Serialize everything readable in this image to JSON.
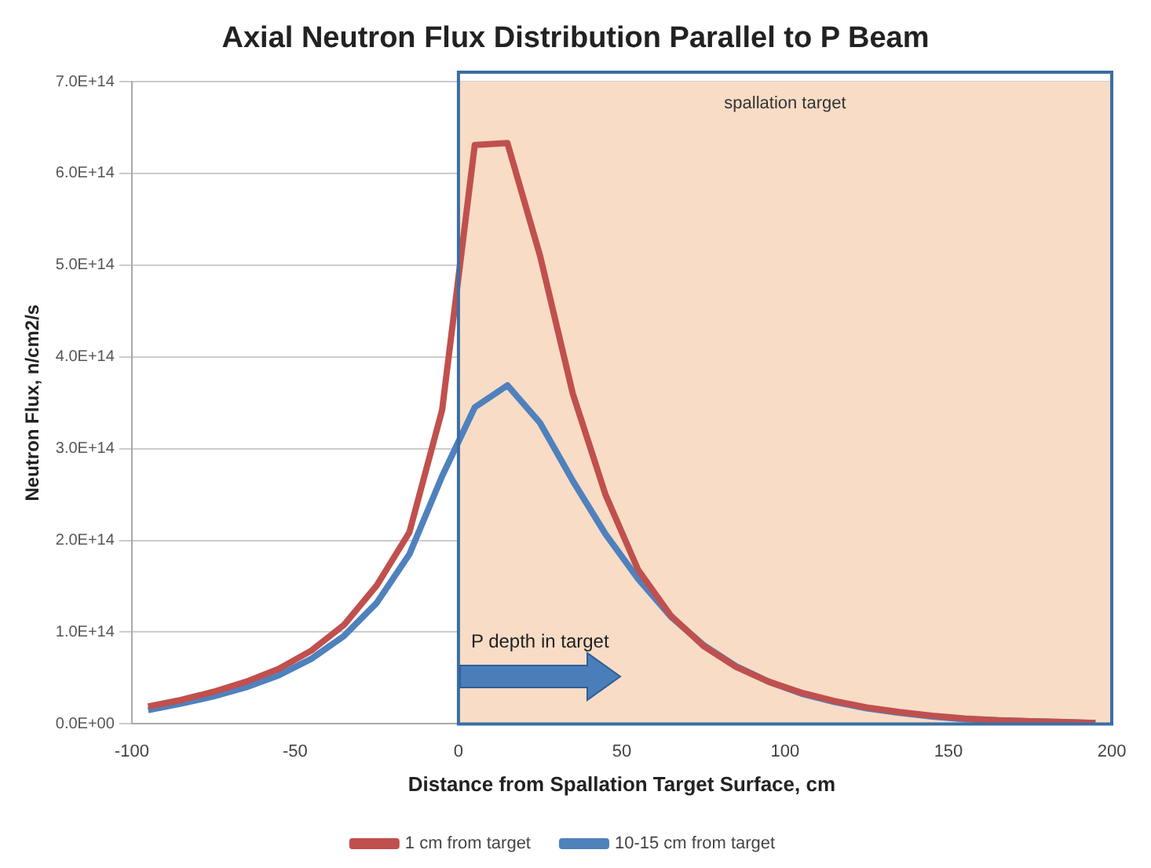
{
  "chart_data": {
    "type": "line",
    "title": "Axial Neutron Flux Distribution Parallel to P Beam",
    "xlabel": "Distance from Spallation Target Surface, cm",
    "ylabel": "Neutron Flux, n/cm2/s",
    "x": [
      -95,
      -85,
      -75,
      -65,
      -55,
      -45,
      -35,
      -25,
      -15,
      -5,
      5,
      15,
      25,
      35,
      45,
      55,
      65,
      75,
      85,
      95,
      105,
      115,
      125,
      135,
      145,
      155,
      165,
      175,
      185,
      195
    ],
    "series": [
      {
        "name": "1 cm from target",
        "color": "#c0504d",
        "values": [
          19000000000000.0,
          26000000000000.0,
          35000000000000.0,
          46000000000000.0,
          60000000000000.0,
          80000000000000.0,
          108000000000000.0,
          151000000000000.0,
          209000000000000.0,
          342000000000000.0,
          631000000000000.0,
          633000000000000.0,
          510000000000000.0,
          360000000000000.0,
          250000000000000.0,
          168000000000000.0,
          118000000000000.0,
          85000000000000.0,
          62000000000000.0,
          46000000000000.0,
          34000000000000.0,
          25000000000000.0,
          18000000000000.0,
          13000000000000.0,
          9000000000000.0,
          6000000000000.0,
          4000000000000.0,
          3000000000000.0,
          2000000000000.0,
          1000000000000.0
        ]
      },
      {
        "name": "10-15 cm from target",
        "color": "#4f81bd",
        "values": [
          15000000000000.0,
          22000000000000.0,
          30000000000000.0,
          40000000000000.0,
          53000000000000.0,
          71000000000000.0,
          96000000000000.0,
          132000000000000.0,
          185000000000000.0,
          270000000000000.0,
          345000000000000.0,
          369000000000000.0,
          328000000000000.0,
          265000000000000.0,
          207000000000000.0,
          158000000000000.0,
          117000000000000.0,
          86000000000000.0,
          63000000000000.0,
          46000000000000.0,
          33000000000000.0,
          24000000000000.0,
          17000000000000.0,
          12000000000000.0,
          8000000000000.0,
          5000000000000.0,
          4000000000000.0,
          3000000000000.0,
          2000000000000.0,
          1000000000000.0
        ]
      }
    ],
    "xlim": [
      -100,
      200
    ],
    "xticks": [
      -100,
      -50,
      0,
      50,
      100,
      150,
      200
    ],
    "ylim": [
      0,
      700000000000000.0
    ],
    "yticks": [
      {
        "value": 0,
        "label": "0.0E+00"
      },
      {
        "value": 100000000000000.0,
        "label": "1.0E+14"
      },
      {
        "value": 200000000000000.0,
        "label": "2.0E+14"
      },
      {
        "value": 300000000000000.0,
        "label": "3.0E+14"
      },
      {
        "value": 400000000000000.0,
        "label": "4.0E+14"
      },
      {
        "value": 500000000000000.0,
        "label": "5.0E+14"
      },
      {
        "value": 600000000000000.0,
        "label": "6.0E+14"
      },
      {
        "value": 700000000000000.0,
        "label": "7.0E+14"
      }
    ],
    "bands": [
      {
        "axis": "x",
        "from": 0,
        "to": 200,
        "label": "spallation target",
        "color": "#f8dcc6"
      }
    ],
    "annotations": [
      "P depth in target"
    ],
    "grid": "y",
    "legend": "bottom",
    "marker": "none",
    "line_style": "solid"
  }
}
